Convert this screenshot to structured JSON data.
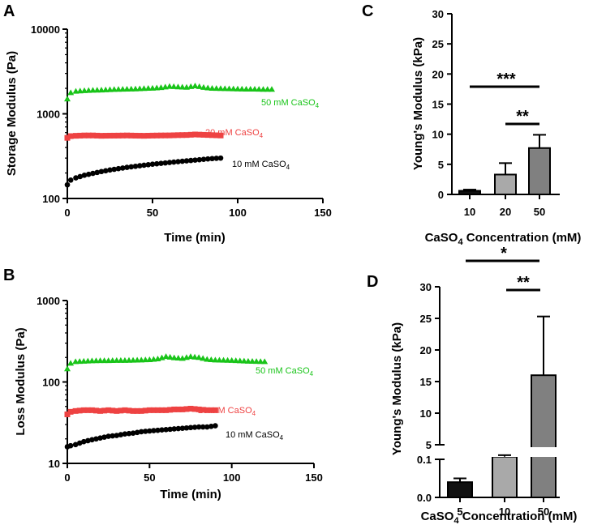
{
  "colors": {
    "green": "#19c419",
    "red": "#ee4242",
    "black": "#000000",
    "bar_dark": "#111111",
    "bar_light": "#a9a9a9",
    "bar_mid": "#808080"
  },
  "chart_data": [
    {
      "panel": "A",
      "type": "scatter",
      "title": "",
      "xlabel": "Time (min)",
      "ylabel": "Storage Modulus (Pa)",
      "xlim": [
        0,
        150
      ],
      "ylim": [
        100,
        10000
      ],
      "yscale": "log",
      "xticks": [
        "0",
        "50",
        "100",
        "150"
      ],
      "yticks": [
        "100",
        "1000",
        "10000"
      ],
      "series": [
        {
          "name": "50 mM CaSO",
          "sub": "4",
          "color": "#19c419",
          "marker": "triangle",
          "x": [
            0,
            2,
            5,
            10,
            15,
            20,
            25,
            30,
            35,
            40,
            45,
            50,
            55,
            60,
            65,
            70,
            75,
            80,
            85,
            90,
            95,
            100,
            105,
            110,
            115,
            120
          ],
          "y": [
            1500,
            1780,
            1850,
            1880,
            1900,
            1910,
            1930,
            1950,
            1960,
            1970,
            1990,
            2010,
            2040,
            2110,
            2080,
            2060,
            2140,
            2050,
            2000,
            1990,
            1980,
            1970,
            1960,
            1960,
            1950,
            1950
          ]
        },
        {
          "name": "20 mM CaSO",
          "sub": "4",
          "color": "#ee4242",
          "marker": "square",
          "x": [
            0,
            2,
            5,
            10,
            15,
            20,
            25,
            30,
            35,
            40,
            45,
            50,
            55,
            60,
            65,
            70,
            75,
            80,
            85,
            90
          ],
          "y": [
            520,
            545,
            550,
            555,
            555,
            550,
            552,
            553,
            555,
            552,
            550,
            553,
            555,
            556,
            560,
            562,
            570,
            565,
            560,
            555
          ]
        },
        {
          "name": "10 mM CaSO",
          "sub": "4",
          "color": "#000000",
          "marker": "circle",
          "x": [
            0,
            2,
            5,
            10,
            15,
            20,
            25,
            30,
            35,
            40,
            45,
            50,
            55,
            60,
            65,
            70,
            75,
            80,
            85,
            90
          ],
          "y": [
            145,
            165,
            175,
            188,
            198,
            208,
            217,
            225,
            233,
            240,
            247,
            254,
            260,
            266,
            272,
            278,
            284,
            290,
            296,
            300
          ]
        }
      ]
    },
    {
      "panel": "B",
      "type": "scatter",
      "title": "",
      "xlabel": "Time (min)",
      "ylabel": "Loss Modulus (Pa)",
      "xlim": [
        0,
        150
      ],
      "ylim": [
        10,
        1000
      ],
      "yscale": "log",
      "xticks": [
        "0",
        "50",
        "100",
        "150"
      ],
      "yticks": [
        "10",
        "100",
        "1000"
      ],
      "series": [
        {
          "name": "50 mM CaSO",
          "sub": "4",
          "color": "#19c419",
          "marker": "triangle",
          "x": [
            0,
            2,
            5,
            10,
            15,
            20,
            25,
            30,
            35,
            40,
            45,
            50,
            55,
            60,
            65,
            70,
            75,
            80,
            85,
            90,
            95,
            100,
            105,
            110,
            115,
            120
          ],
          "y": [
            145,
            170,
            178,
            180,
            182,
            183,
            183,
            184,
            184,
            185,
            186,
            188,
            192,
            205,
            198,
            195,
            205,
            200,
            190,
            186,
            185,
            184,
            182,
            180,
            179,
            178
          ]
        },
        {
          "name": "20 mM CaSO",
          "sub": "4",
          "color": "#ee4242",
          "marker": "square",
          "x": [
            0,
            2,
            5,
            10,
            15,
            20,
            25,
            30,
            35,
            40,
            45,
            50,
            55,
            60,
            65,
            70,
            75,
            80,
            85,
            90
          ],
          "y": [
            40,
            43,
            44,
            45,
            45,
            44,
            45,
            44,
            45,
            44,
            44,
            45,
            45,
            45,
            46,
            46,
            47,
            46,
            45,
            45
          ]
        },
        {
          "name": "10 mM CaSO",
          "sub": "4",
          "color": "#000000",
          "marker": "circle",
          "x": [
            0,
            2,
            5,
            10,
            15,
            20,
            25,
            30,
            35,
            40,
            45,
            50,
            55,
            60,
            65,
            70,
            75,
            80,
            85,
            90
          ],
          "y": [
            16,
            16.5,
            17,
            18.5,
            19.5,
            20.5,
            21.5,
            22,
            23,
            23.5,
            24.5,
            25,
            25.5,
            26,
            26.5,
            27,
            27.5,
            28,
            28,
            29
          ]
        }
      ]
    },
    {
      "panel": "C",
      "type": "bar",
      "xlabel": "CaSO",
      "xlabel_sub": "4",
      "xlabel_tail": " Concentration (mM)",
      "ylabel": "Young's Modulus (kPa)",
      "ylim": [
        0,
        30
      ],
      "yticks": [
        "0",
        "5",
        "10",
        "15",
        "20",
        "25",
        "30"
      ],
      "categories": [
        "10",
        "20",
        "50"
      ],
      "values": [
        0.6,
        3.3,
        7.7
      ],
      "errors": [
        0.2,
        1.9,
        2.2
      ],
      "significance": [
        {
          "from": "10",
          "to": "50",
          "label": "***"
        },
        {
          "from": "20",
          "to": "50",
          "label": "**"
        }
      ]
    },
    {
      "panel": "D",
      "type": "bar",
      "xlabel": "CaSO",
      "xlabel_sub": "4",
      "xlabel_tail": " Concentration (mM)",
      "ylabel": "Young's Modulus (kPa)",
      "ylim": [
        0,
        30
      ],
      "axis_break": [
        0.1,
        5
      ],
      "yticks_low": [
        "0.0",
        "0.1"
      ],
      "yticks_high": [
        "5",
        "10",
        "15",
        "20",
        "25",
        "30"
      ],
      "categories": [
        "5",
        "10",
        "50"
      ],
      "values": [
        0.04,
        1.0,
        16.0
      ],
      "errors": [
        0.01,
        0.5,
        9.3
      ],
      "significance": [
        {
          "from": "5",
          "to": "50",
          "label": "*"
        },
        {
          "from": "10",
          "to": "50",
          "label": "**"
        }
      ]
    }
  ]
}
